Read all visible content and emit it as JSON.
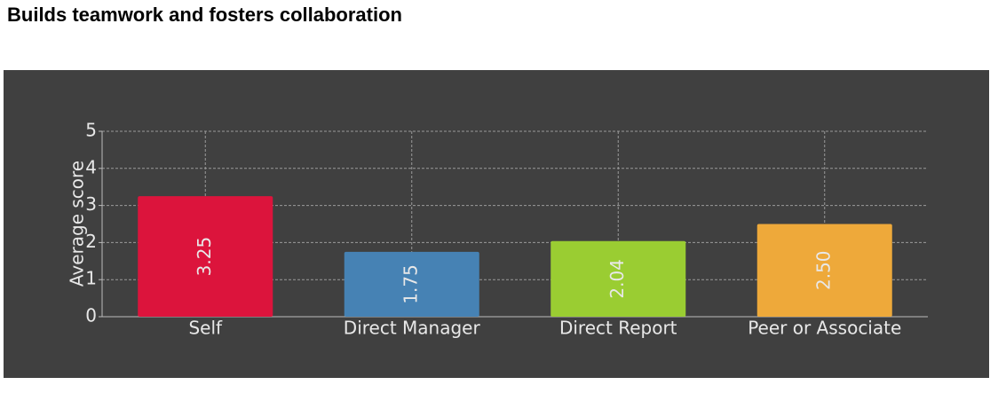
{
  "chart_data": {
    "type": "bar",
    "title": "Builds teamwork and fosters collaboration",
    "ylabel": "Average score",
    "categories": [
      "Self",
      "Direct Manager",
      "Direct Report",
      "Peer or Associate"
    ],
    "values": [
      3.25,
      1.75,
      2.04,
      2.5
    ],
    "value_labels": [
      "3.25",
      "1.75",
      "2.04",
      "2.50"
    ],
    "colors": [
      "#dc143c",
      "#4682b4",
      "#9acd32",
      "#eea93a"
    ],
    "ylim": [
      0,
      5
    ],
    "yticks": [
      0,
      1,
      2,
      3,
      4,
      5
    ],
    "grid": true
  }
}
